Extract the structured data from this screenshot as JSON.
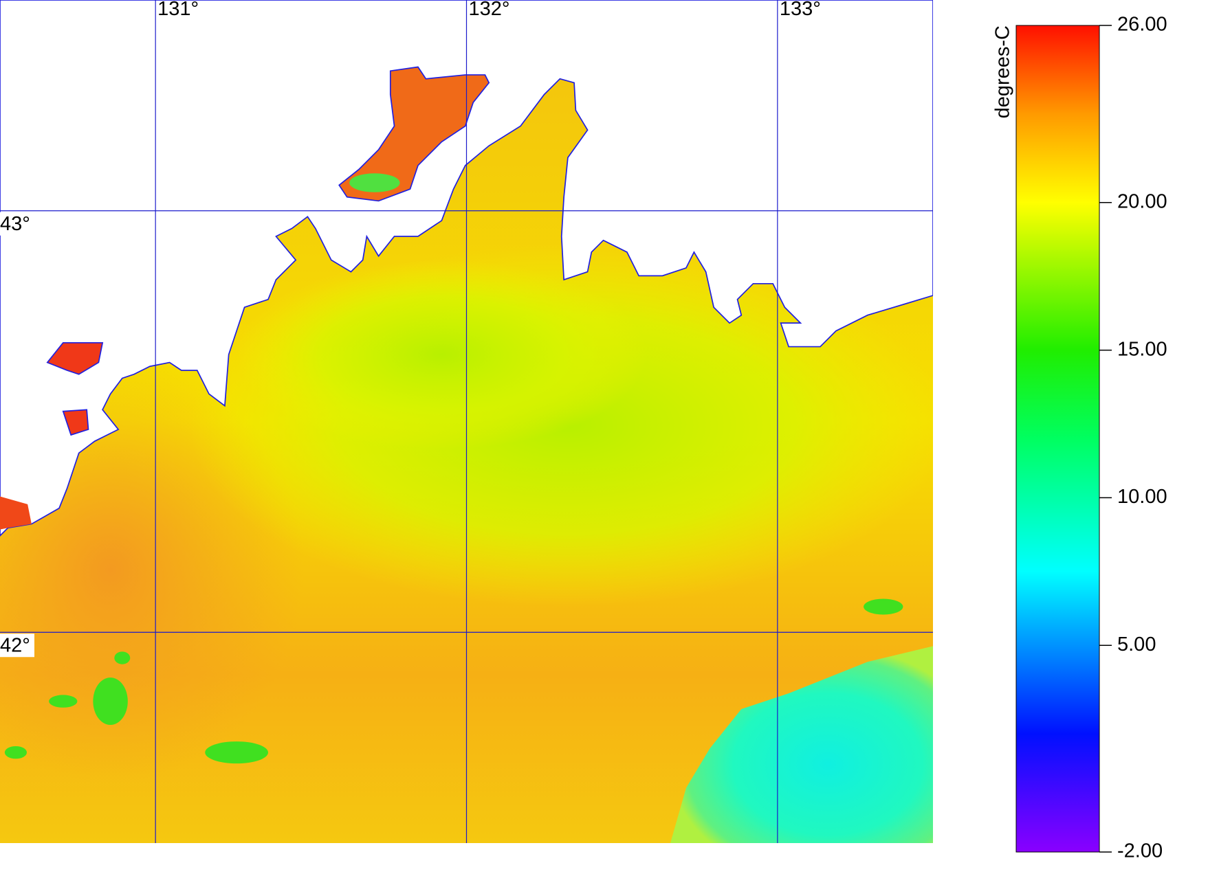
{
  "map": {
    "lon_lim": [
      130.5,
      133.5
    ],
    "lat_lim": [
      41.5,
      43.5
    ],
    "lon_lines": [
      {
        "value": 131,
        "label": "131°"
      },
      {
        "value": 132,
        "label": "132°"
      },
      {
        "value": 133,
        "label": "133°"
      }
    ],
    "lat_lines": [
      {
        "value": 43,
        "label": "43°"
      },
      {
        "value": 42,
        "label": "42°"
      }
    ],
    "grid_color": "#1a1acc"
  },
  "colorbar": {
    "title": "degrees-C",
    "range": [
      -2,
      26
    ],
    "ticks": [
      {
        "value": 26,
        "label": "26.00"
      },
      {
        "value": 20,
        "label": "20.00"
      },
      {
        "value": 15,
        "label": "15.00"
      },
      {
        "value": 10,
        "label": "10.00"
      },
      {
        "value": 5,
        "label": "5.00"
      },
      {
        "value": -2,
        "label": "-2.00"
      }
    ],
    "stops": [
      {
        "value": -2,
        "color": "#8a00ff"
      },
      {
        "value": 2,
        "color": "#0010ff"
      },
      {
        "value": 7.5,
        "color": "#00ffff"
      },
      {
        "value": 12,
        "color": "#00ff60"
      },
      {
        "value": 15,
        "color": "#20ee00"
      },
      {
        "value": 20,
        "color": "#ffff00"
      },
      {
        "value": 23,
        "color": "#ff9a00"
      },
      {
        "value": 26,
        "color": "#ff1000"
      }
    ]
  }
}
